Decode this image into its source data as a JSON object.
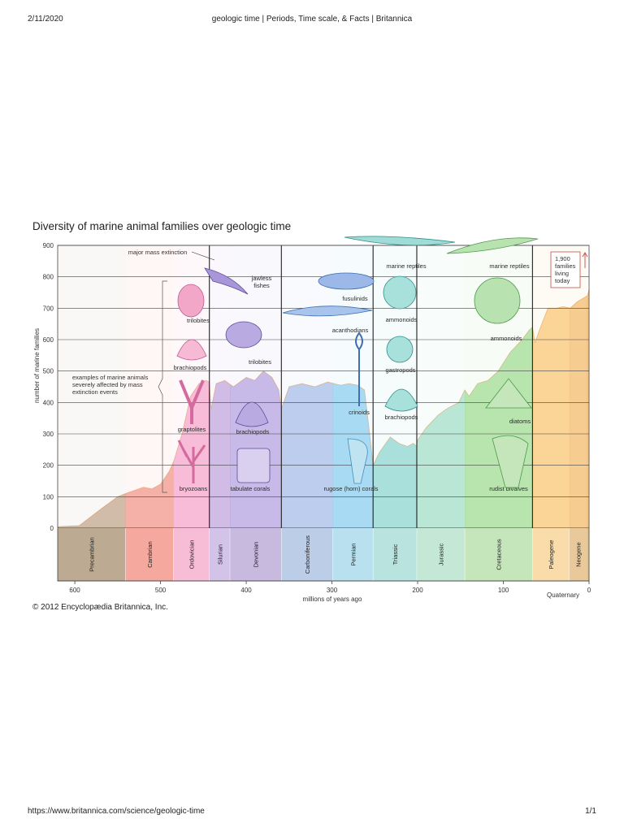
{
  "page": {
    "date": "2/11/2020",
    "title": "geologic time | Periods, Time scale, & Facts | Britannica",
    "url": "https://www.britannica.com/science/geologic-time",
    "page_number": "1/1"
  },
  "figure": {
    "title": "Diversity of marine animal families over geologic time",
    "copyright": "© 2012 Encyclopædia Britannica, Inc."
  },
  "chart_data": {
    "type": "area",
    "title": "Diversity of marine animal families over geologic time",
    "xlabel": "millions of years ago",
    "ylabel": "number of marine families",
    "xlim": [
      620,
      0
    ],
    "ylim": [
      0,
      900
    ],
    "grid": true,
    "x_ticks": [
      600,
      500,
      400,
      300,
      200,
      100,
      0
    ],
    "y_ticks": [
      0,
      100,
      200,
      300,
      400,
      500,
      600,
      700,
      800,
      900
    ],
    "periods": [
      {
        "name": "Precambrian",
        "start": 620,
        "end": 541,
        "color": "#c2a88e",
        "band": "#bcaa92"
      },
      {
        "name": "Cambrian",
        "start": 541,
        "end": 485,
        "color": "#f29a8c",
        "band": "#f5a99e"
      },
      {
        "name": "Ordovician",
        "start": 485,
        "end": 443,
        "color": "#f6a8cc",
        "band": "#f7bcd6"
      },
      {
        "name": "Silurian",
        "start": 443,
        "end": 419,
        "color": "#c3a8de",
        "band": "#d4c3e8"
      },
      {
        "name": "Devonian",
        "start": 419,
        "end": 359,
        "color": "#b6a4e0",
        "band": "#c8badf"
      },
      {
        "name": "Carboniferous",
        "start": 359,
        "end": 299,
        "color": "#a8bde8",
        "band": "#bccde8"
      },
      {
        "name": "Permian",
        "start": 299,
        "end": 252,
        "color": "#8ed0ef",
        "band": "#b8e0ee"
      },
      {
        "name": "Triassic",
        "start": 252,
        "end": 201,
        "color": "#8fd7d2",
        "band": "#b9e3de"
      },
      {
        "name": "Jurassic",
        "start": 201,
        "end": 145,
        "color": "#a6dfc8",
        "band": "#c5e8d6"
      },
      {
        "name": "Cretaceous",
        "start": 145,
        "end": 66,
        "color": "#a3dc95",
        "band": "#c5e6ba"
      },
      {
        "name": "Paleogene",
        "start": 66,
        "end": 23,
        "color": "#f8c878",
        "band": "#f9dcaa"
      },
      {
        "name": "Neogene",
        "start": 23,
        "end": 2.6,
        "color": "#f3bc70",
        "band": "#e9c99a"
      }
    ],
    "quaternary_label": "Quaternary",
    "mass_extinctions": [
      443,
      359,
      252,
      201,
      66
    ],
    "series": [
      {
        "x": [
          620,
          595,
          570,
          550,
          541,
          520,
          510,
          500,
          490,
          485,
          475,
          465,
          455,
          447,
          443,
          441,
          435,
          425,
          415,
          400,
          390,
          380,
          370,
          362,
          359,
          350,
          335,
          320,
          305,
          290,
          280,
          270,
          262,
          256,
          252,
          245,
          232,
          222,
          212,
          205,
          201,
          200,
          190,
          176,
          166,
          152,
          145,
          140,
          130,
          118,
          106,
          92,
          78,
          70,
          66,
          63,
          58,
          48,
          38,
          30,
          22,
          14,
          8,
          2,
          0
        ],
        "y": [
          5,
          8,
          60,
          100,
          110,
          130,
          125,
          140,
          180,
          210,
          300,
          420,
          460,
          470,
          465,
          380,
          460,
          470,
          450,
          480,
          470,
          500,
          480,
          440,
          380,
          450,
          460,
          450,
          465,
          455,
          460,
          455,
          440,
          300,
          200,
          240,
          290,
          270,
          260,
          270,
          260,
          280,
          320,
          360,
          380,
          400,
          440,
          420,
          460,
          470,
          500,
          560,
          600,
          630,
          640,
          590,
          630,
          700,
          700,
          705,
          700,
          720,
          730,
          740,
          760
        ]
      }
    ],
    "annotations": [
      {
        "text": "major mass extinction"
      },
      {
        "text": "examples of marine animals severely affected by mass extinction events"
      },
      {
        "text": "1,900 families living today"
      }
    ],
    "organisms": [
      {
        "label": "trilobites",
        "period": "Ordovician"
      },
      {
        "label": "brachiopods",
        "period": "Ordovician"
      },
      {
        "label": "graptolites",
        "period": "Ordovician"
      },
      {
        "label": "bryozoans",
        "period": "Ordovician"
      },
      {
        "label": "jawless fishes",
        "period": "Devonian"
      },
      {
        "label": "trilobites",
        "period": "Devonian"
      },
      {
        "label": "brachiopods",
        "period": "Devonian"
      },
      {
        "label": "tabulate corals",
        "period": "Devonian"
      },
      {
        "label": "fusulinids",
        "period": "Permian"
      },
      {
        "label": "acanthodians",
        "period": "Permian"
      },
      {
        "label": "crinoids",
        "period": "Permian"
      },
      {
        "label": "rugose (horn) corals",
        "period": "Permian"
      },
      {
        "label": "marine reptiles",
        "period": "Triassic"
      },
      {
        "label": "ammonoids",
        "period": "Triassic"
      },
      {
        "label": "gastropods",
        "period": "Triassic"
      },
      {
        "label": "brachiopods",
        "period": "Triassic"
      },
      {
        "label": "marine reptiles",
        "period": "Cretaceous"
      },
      {
        "label": "ammonoids",
        "period": "Cretaceous"
      },
      {
        "label": "diatoms",
        "period": "Cretaceous"
      },
      {
        "label": "rudist bivalves",
        "period": "Cretaceous"
      }
    ]
  }
}
